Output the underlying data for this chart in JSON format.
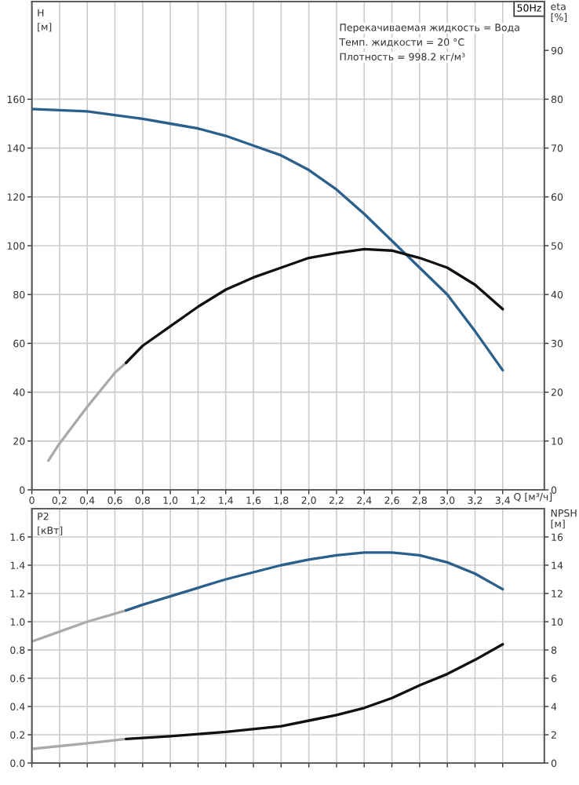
{
  "chart_data": [
    {
      "type": "line",
      "ylabel": "H\n[м]",
      "y2label": "eta\n[%]",
      "xlabel": "Q [м³/ч]",
      "annotations": [
        "50Hz",
        "Перекачиваемая жидкость = Вода",
        "Темп. жидкости = 20 °C",
        "Плотность = 998.2 кг/м³"
      ],
      "xlim": [
        0,
        3.7
      ],
      "ylim": [
        0,
        200
      ],
      "y2lim": [
        0,
        100
      ],
      "xticks": [
        0,
        {
          "value": 0.2,
          "label": "0,2"
        },
        {
          "value": 0.4,
          "label": "0,4"
        },
        {
          "value": 0.6,
          "label": "0,6"
        },
        {
          "value": 0.8,
          "label": "0,8"
        },
        {
          "value": 1.0,
          "label": "1,0"
        },
        {
          "value": 1.2,
          "label": "1,2"
        },
        {
          "value": 1.4,
          "label": "1,4"
        },
        {
          "value": 1.6,
          "label": "1,6"
        },
        {
          "value": 1.8,
          "label": "1,8"
        },
        {
          "value": 2.0,
          "label": "2,0"
        },
        {
          "value": 2.2,
          "label": "2,2"
        },
        {
          "value": 2.4,
          "label": "2,4"
        },
        {
          "value": 2.6,
          "label": "2,6"
        },
        {
          "value": 2.8,
          "label": "2,8"
        },
        {
          "value": 3.0,
          "label": "3,0"
        },
        {
          "value": 3.2,
          "label": "3,2"
        },
        {
          "value": 3.4,
          "label": "3,4"
        }
      ],
      "yticks": [
        0,
        20,
        40,
        60,
        80,
        100,
        120,
        140,
        160
      ],
      "y2ticks": [
        0,
        10,
        20,
        30,
        40,
        50,
        60,
        70,
        80,
        90
      ],
      "grid": true,
      "legend": false,
      "series": [
        {
          "color": "#2b5f8c",
          "x": [
            0,
            0.4,
            0.8,
            1.0,
            1.2,
            1.4,
            1.6,
            1.8,
            2.0,
            2.2,
            2.4,
            2.6,
            2.8,
            3.0,
            3.2,
            3.4
          ],
          "values": [
            156,
            155,
            152,
            150,
            148,
            145,
            141,
            137,
            131,
            123,
            113,
            102,
            91,
            80,
            65,
            49
          ]
        },
        {
          "color": "#aaaaaa",
          "axis": "y2",
          "x": [
            0.12,
            0.2,
            0.4,
            0.6,
            0.68
          ],
          "values": [
            6,
            9.5,
            17,
            24,
            26
          ]
        },
        {
          "color": "#111111",
          "axis": "y2",
          "x": [
            0.68,
            0.8,
            1.0,
            1.2,
            1.4,
            1.6,
            1.8,
            2.0,
            2.2,
            2.4,
            2.6,
            2.8,
            3.0,
            3.2,
            3.4
          ],
          "values": [
            26,
            29.5,
            33.5,
            37.5,
            41,
            43.5,
            45.5,
            47.5,
            48.5,
            49.3,
            49,
            47.5,
            45.5,
            42,
            37
          ]
        }
      ]
    },
    {
      "type": "line",
      "ylabel": "P2\n[кВт]",
      "y2label": "NPSH\n[м]",
      "xlim": [
        0,
        3.7
      ],
      "ylim": [
        0,
        1.8
      ],
      "y2lim": [
        0,
        18
      ],
      "xticks": [
        0,
        0.2,
        0.4,
        0.6,
        0.8,
        1.0,
        1.2,
        1.4,
        1.6,
        1.8,
        2.0,
        2.2,
        2.4,
        2.6,
        2.8,
        3.0,
        3.2,
        3.4
      ],
      "yticks": [
        {
          "value": 0,
          "label": "0.0"
        },
        {
          "value": 0.2,
          "label": "0.2"
        },
        {
          "value": 0.4,
          "label": "0.4"
        },
        {
          "value": 0.6,
          "label": "0.6"
        },
        {
          "value": 0.8,
          "label": "0.8"
        },
        {
          "value": 1.0,
          "label": "1.0"
        },
        {
          "value": 1.2,
          "label": "1.2"
        },
        {
          "value": 1.4,
          "label": "1.4"
        },
        {
          "value": 1.6,
          "label": "1.6"
        }
      ],
      "y2ticks": [
        0,
        2,
        4,
        6,
        8,
        10,
        12,
        14,
        16
      ],
      "tick_labels": "y",
      "grid": true,
      "legend": false,
      "series": [
        {
          "color": "#aaaaaa",
          "x": [
            0,
            0.2,
            0.4,
            0.68
          ],
          "values": [
            0.86,
            0.93,
            1.0,
            1.08
          ]
        },
        {
          "color": "#2b5f8c",
          "x": [
            0.68,
            0.8,
            1.0,
            1.2,
            1.4,
            1.6,
            1.8,
            2.0,
            2.2,
            2.4,
            2.6,
            2.8,
            3.0,
            3.2,
            3.4
          ],
          "values": [
            1.08,
            1.12,
            1.18,
            1.24,
            1.3,
            1.35,
            1.4,
            1.44,
            1.47,
            1.49,
            1.49,
            1.47,
            1.42,
            1.34,
            1.23
          ]
        },
        {
          "color": "#aaaaaa",
          "axis": "y2",
          "x": [
            0,
            0.4,
            0.68
          ],
          "values": [
            1.0,
            1.4,
            1.7
          ]
        },
        {
          "color": "#111111",
          "axis": "y2",
          "x": [
            0.68,
            1.0,
            1.4,
            1.8,
            2.0,
            2.2,
            2.4,
            2.6,
            2.8,
            3.0,
            3.2,
            3.4
          ],
          "values": [
            1.7,
            1.9,
            2.2,
            2.6,
            3.0,
            3.4,
            3.9,
            4.6,
            5.5,
            6.3,
            7.3,
            8.4
          ]
        }
      ]
    }
  ]
}
